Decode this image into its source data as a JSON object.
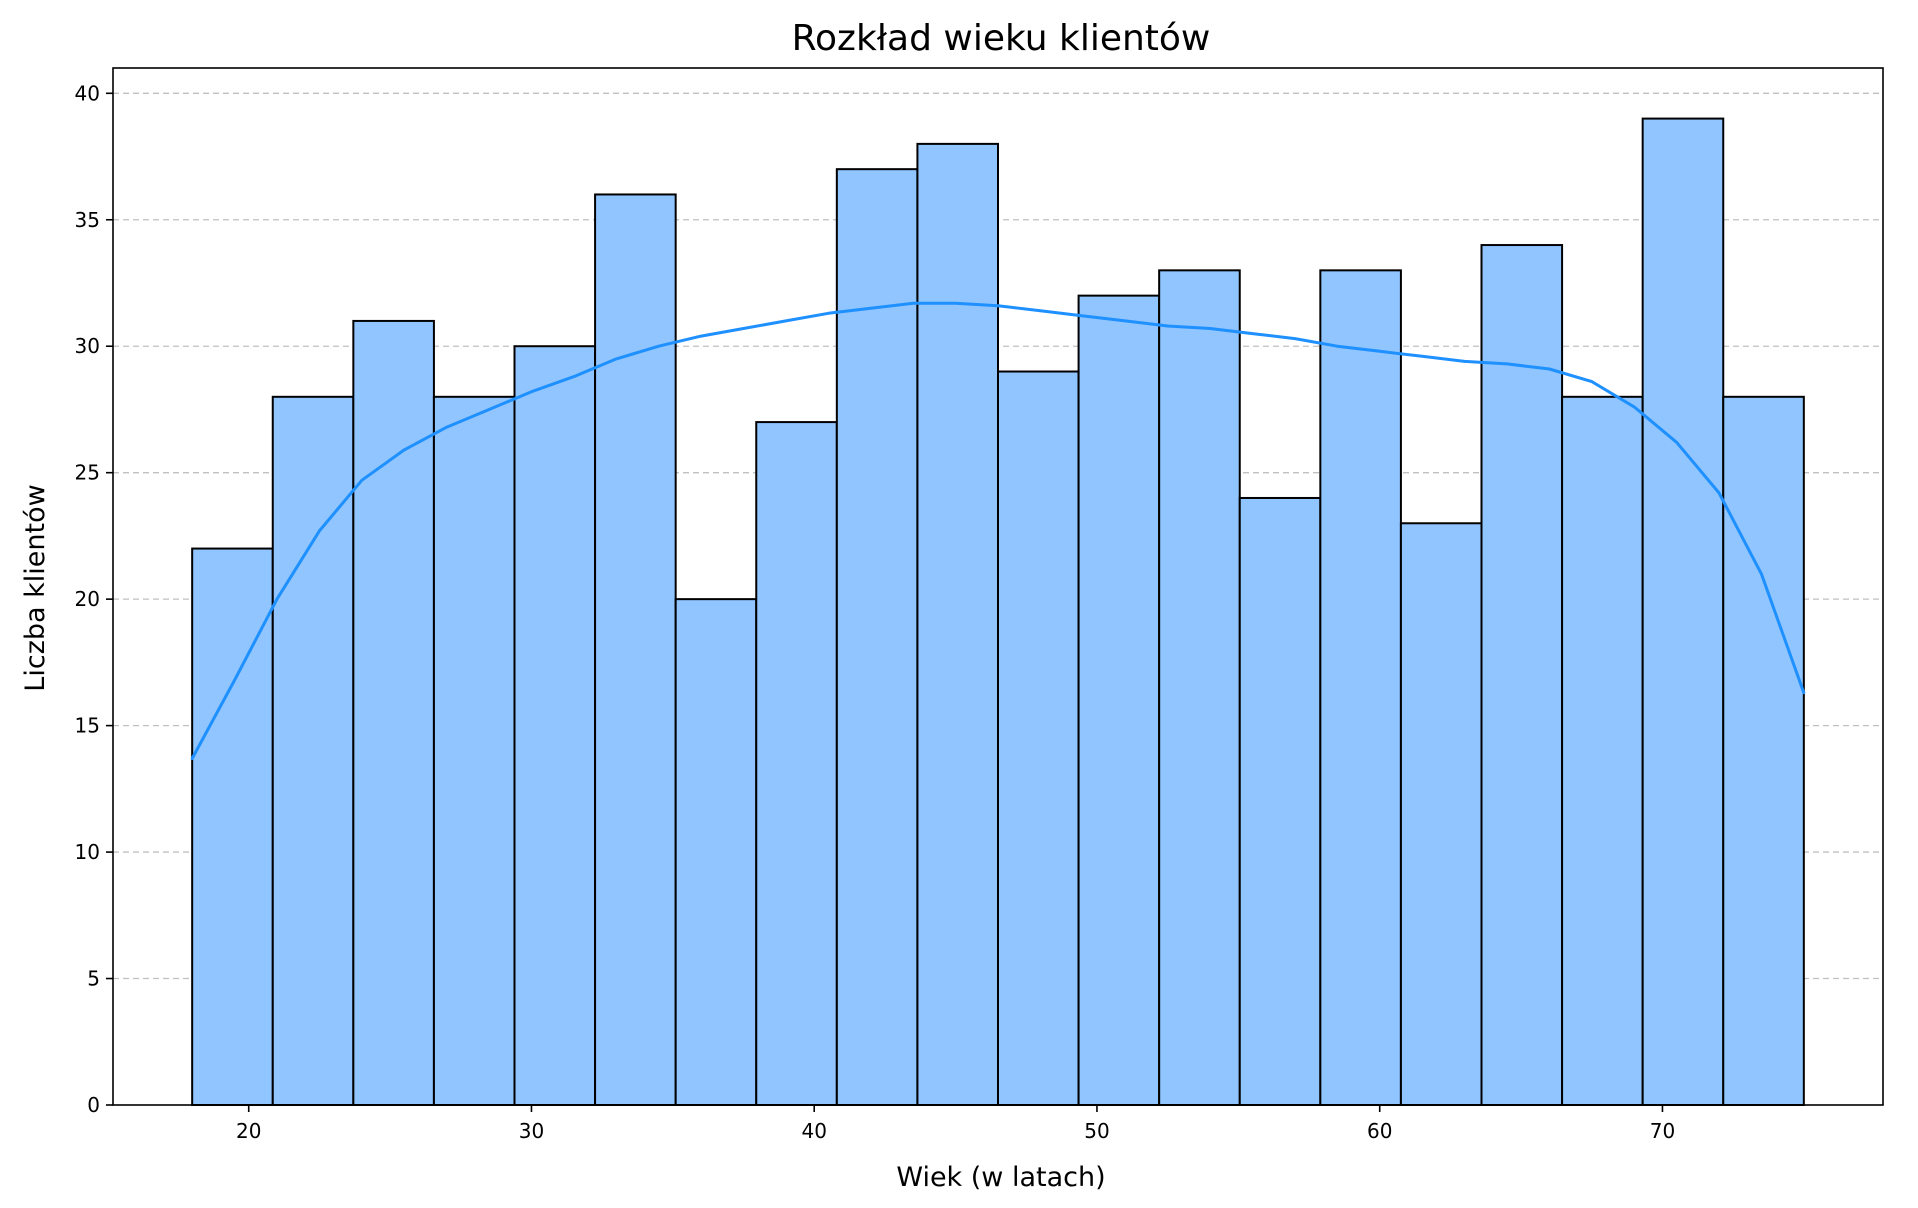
{
  "chart_data": {
    "type": "bar",
    "title": "Rozkład wieku klientów",
    "xlabel": "Wiek (w latach)",
    "ylabel": "Liczba klientów",
    "xlim": [
      15.2,
      77.8
    ],
    "ylim": [
      0,
      41
    ],
    "x_ticks": [
      20,
      30,
      40,
      50,
      60,
      70
    ],
    "y_ticks": [
      0,
      5,
      10,
      15,
      20,
      25,
      30,
      35,
      40
    ],
    "bins": [
      {
        "start": 18.0,
        "end": 20.85,
        "count": 22
      },
      {
        "start": 20.85,
        "end": 23.7,
        "count": 28
      },
      {
        "start": 23.7,
        "end": 26.55,
        "count": 31
      },
      {
        "start": 26.55,
        "end": 29.4,
        "count": 28
      },
      {
        "start": 29.4,
        "end": 32.25,
        "count": 30
      },
      {
        "start": 32.25,
        "end": 35.1,
        "count": 36
      },
      {
        "start": 35.1,
        "end": 37.95,
        "count": 20
      },
      {
        "start": 37.95,
        "end": 40.8,
        "count": 27
      },
      {
        "start": 40.8,
        "end": 43.65,
        "count": 37
      },
      {
        "start": 43.65,
        "end": 46.5,
        "count": 38
      },
      {
        "start": 46.5,
        "end": 49.35,
        "count": 29
      },
      {
        "start": 49.35,
        "end": 52.2,
        "count": 32
      },
      {
        "start": 52.2,
        "end": 55.05,
        "count": 33
      },
      {
        "start": 55.05,
        "end": 57.9,
        "count": 24
      },
      {
        "start": 57.9,
        "end": 60.75,
        "count": 33
      },
      {
        "start": 60.75,
        "end": 63.6,
        "count": 23
      },
      {
        "start": 63.6,
        "end": 66.45,
        "count": 34
      },
      {
        "start": 66.45,
        "end": 69.3,
        "count": 28
      },
      {
        "start": 69.3,
        "end": 72.15,
        "count": 39
      },
      {
        "start": 72.15,
        "end": 75.0,
        "count": 28
      }
    ],
    "kde_curve": [
      [
        18.0,
        13.7
      ],
      [
        19.5,
        16.8
      ],
      [
        21.0,
        20.0
      ],
      [
        22.5,
        22.7
      ],
      [
        24.0,
        24.7
      ],
      [
        25.5,
        25.9
      ],
      [
        27.0,
        26.8
      ],
      [
        28.5,
        27.5
      ],
      [
        30.0,
        28.2
      ],
      [
        31.5,
        28.8
      ],
      [
        33.0,
        29.5
      ],
      [
        34.5,
        30.0
      ],
      [
        36.0,
        30.4
      ],
      [
        37.5,
        30.7
      ],
      [
        39.0,
        31.0
      ],
      [
        40.5,
        31.3
      ],
      [
        42.0,
        31.5
      ],
      [
        43.5,
        31.7
      ],
      [
        45.0,
        31.7
      ],
      [
        46.5,
        31.6
      ],
      [
        48.0,
        31.4
      ],
      [
        49.5,
        31.2
      ],
      [
        51.0,
        31.0
      ],
      [
        52.5,
        30.8
      ],
      [
        54.0,
        30.7
      ],
      [
        55.5,
        30.5
      ],
      [
        57.0,
        30.3
      ],
      [
        58.5,
        30.0
      ],
      [
        60.0,
        29.8
      ],
      [
        61.5,
        29.6
      ],
      [
        63.0,
        29.4
      ],
      [
        64.5,
        29.3
      ],
      [
        66.0,
        29.1
      ],
      [
        67.5,
        28.6
      ],
      [
        69.0,
        27.6
      ],
      [
        70.5,
        26.2
      ],
      [
        72.0,
        24.2
      ],
      [
        73.5,
        21.0
      ],
      [
        75.0,
        16.3
      ]
    ],
    "colors": {
      "bar_fill": "#90c5ff",
      "bar_edge": "#000000",
      "kde_line": "#1e90ff",
      "grid": "#c0c0c0",
      "axes": "#000000"
    },
    "grid": "y-dashed",
    "legend": "none"
  }
}
